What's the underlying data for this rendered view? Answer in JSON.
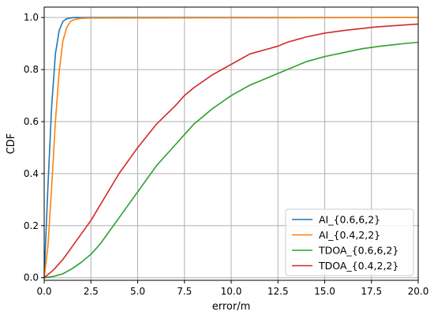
{
  "chart_data": {
    "type": "line",
    "xlabel": "error/m",
    "ylabel": "CDF",
    "xlim": [
      0,
      20
    ],
    "ylim": [
      -0.01,
      1.04
    ],
    "xticks": [
      "0.0",
      "2.5",
      "5.0",
      "7.5",
      "10.0",
      "12.5",
      "15.0",
      "17.5",
      "20.0"
    ],
    "yticks": [
      "0.0",
      "0.2",
      "0.4",
      "0.6",
      "0.8",
      "1.0"
    ],
    "grid": true,
    "legend_position": "lower-right",
    "series": [
      {
        "name": "AI_{0.6,6,2}",
        "color": "#1f77b4",
        "x": [
          0,
          0.2,
          0.4,
          0.6,
          0.8,
          1.0,
          1.2,
          1.4,
          1.6,
          2.0,
          20.0
        ],
        "y": [
          0,
          0.35,
          0.66,
          0.86,
          0.95,
          0.985,
          0.995,
          0.998,
          1.0,
          1.0,
          1.0
        ]
      },
      {
        "name": "AI_{0.4,2,2}",
        "color": "#ff7f0e",
        "x": [
          0,
          0.2,
          0.4,
          0.6,
          0.8,
          1.0,
          1.2,
          1.4,
          1.6,
          1.8,
          2.0,
          2.5,
          20.0
        ],
        "y": [
          0,
          0.12,
          0.35,
          0.6,
          0.79,
          0.91,
          0.96,
          0.985,
          0.992,
          0.995,
          0.997,
          0.998,
          1.0
        ]
      },
      {
        "name": "TDOA_{0.6,6,2}",
        "color": "#2ca02c",
        "x": [
          0,
          0.5,
          1.0,
          1.5,
          2.0,
          2.5,
          3.0,
          3.5,
          4.0,
          4.5,
          5.0,
          6.0,
          7.0,
          7.5,
          8.0,
          9.0,
          10.0,
          11.0,
          12.0,
          12.5,
          13.0,
          14.0,
          15.0,
          16.0,
          17.0,
          17.5,
          18.0,
          19.0,
          20.0
        ],
        "y": [
          0,
          0.005,
          0.015,
          0.035,
          0.06,
          0.09,
          0.13,
          0.18,
          0.23,
          0.28,
          0.33,
          0.43,
          0.51,
          0.55,
          0.59,
          0.65,
          0.7,
          0.74,
          0.77,
          0.785,
          0.8,
          0.83,
          0.85,
          0.865,
          0.88,
          0.885,
          0.89,
          0.898,
          0.905
        ]
      },
      {
        "name": "TDOA_{0.4,2,2}",
        "color": "#d62728",
        "x": [
          0,
          0.5,
          1.0,
          1.5,
          2.0,
          2.5,
          3.0,
          4.0,
          5.0,
          6.0,
          7.0,
          7.5,
          8.0,
          9.0,
          10.0,
          11.0,
          12.0,
          12.5,
          13.0,
          14.0,
          15.0,
          16.0,
          17.0,
          17.5,
          18.0,
          19.0,
          20.0
        ],
        "y": [
          0,
          0.03,
          0.07,
          0.12,
          0.17,
          0.22,
          0.28,
          0.4,
          0.5,
          0.59,
          0.66,
          0.7,
          0.73,
          0.78,
          0.82,
          0.86,
          0.88,
          0.89,
          0.905,
          0.925,
          0.94,
          0.95,
          0.958,
          0.962,
          0.965,
          0.97,
          0.975
        ]
      }
    ]
  }
}
